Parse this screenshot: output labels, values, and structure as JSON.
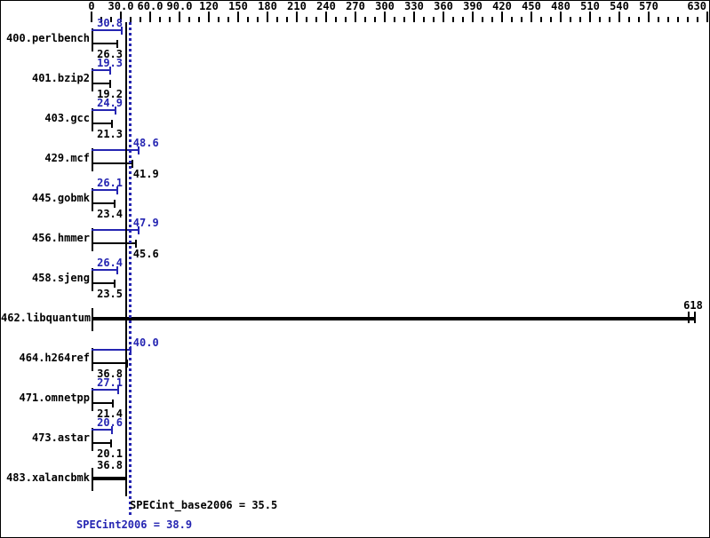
{
  "colors": {
    "peak_blue": "#2525b2",
    "base_black": "#000000",
    "background": "#ffffff"
  },
  "axis": {
    "unit_min": 0,
    "unit_max": 630,
    "minor_step": 10,
    "major_step": 30,
    "major_ticks": [
      {
        "value": 0,
        "label": "0"
      },
      {
        "value": 30,
        "label": "30.0"
      },
      {
        "value": 60,
        "label": "60.0"
      },
      {
        "value": 90,
        "label": "90.0"
      },
      {
        "value": 120,
        "label": "120"
      },
      {
        "value": 150,
        "label": "150"
      },
      {
        "value": 180,
        "label": "180"
      },
      {
        "value": 210,
        "label": "210"
      },
      {
        "value": 240,
        "label": "240"
      },
      {
        "value": 270,
        "label": "270"
      },
      {
        "value": 300,
        "label": "300"
      },
      {
        "value": 330,
        "label": "330"
      },
      {
        "value": 360,
        "label": "360"
      },
      {
        "value": 390,
        "label": "390"
      },
      {
        "value": 420,
        "label": "420"
      },
      {
        "value": 450,
        "label": "450"
      },
      {
        "value": 480,
        "label": "480"
      },
      {
        "value": 510,
        "label": "510"
      },
      {
        "value": 540,
        "label": "540"
      },
      {
        "value": 570,
        "label": "570"
      },
      {
        "value": 600,
        "label": ""
      },
      {
        "value": 630,
        "label": "630"
      }
    ]
  },
  "benchmarks": [
    {
      "name": "400.perlbench",
      "peak": 30.8,
      "peak_label": "30.8",
      "base": 26.3,
      "base_label": "26.3"
    },
    {
      "name": "401.bzip2",
      "peak": 19.3,
      "peak_label": "19.3",
      "base": 19.2,
      "base_label": "19.2"
    },
    {
      "name": "403.gcc",
      "peak": 24.9,
      "peak_label": "24.9",
      "base": 21.3,
      "base_label": "21.3"
    },
    {
      "name": "429.mcf",
      "peak": 48.6,
      "peak_label": "48.6",
      "base": 41.9,
      "base_label": "41.9",
      "peak_label_right": true,
      "base_label_right": true
    },
    {
      "name": "445.gobmk",
      "peak": 26.1,
      "peak_label": "26.1",
      "base": 23.4,
      "base_label": "23.4"
    },
    {
      "name": "456.hmmer",
      "peak": 47.9,
      "peak_label": "47.9",
      "base": 45.6,
      "base_label": "45.6",
      "peak_label_right": true,
      "base_label_right": true
    },
    {
      "name": "458.sjeng",
      "peak": 26.4,
      "peak_label": "26.4",
      "base": 23.5,
      "base_label": "23.5"
    },
    {
      "name": "462.libquantum",
      "single": 618,
      "single_label": "618",
      "cap2": 611,
      "label_at_end": true
    },
    {
      "name": "464.h264ref",
      "peak": 40.0,
      "peak_label": "40.0",
      "base": 36.8,
      "base_label": "36.8",
      "peak_label_right": true
    },
    {
      "name": "471.omnetpp",
      "peak": 27.1,
      "peak_label": "27.1",
      "base": 21.4,
      "base_label": "21.4"
    },
    {
      "name": "473.astar",
      "peak": 20.6,
      "peak_label": "20.6",
      "base": 20.1,
      "base_label": "20.1"
    },
    {
      "name": "483.xalancbmk",
      "single": 36.8,
      "single_label": "36.8"
    }
  ],
  "summary": {
    "base": {
      "value": 35.5,
      "label": "SPECint_base2006 = 35.5",
      "line_style": "solid",
      "color": "#000000"
    },
    "peak": {
      "value": 38.9,
      "label": "SPECint2006 = 38.9",
      "line_style": "dotted",
      "color": "#2525b2"
    }
  },
  "chart_data": {
    "type": "bar",
    "orientation": "horizontal",
    "title": "",
    "xlabel": "",
    "ylabel": "",
    "xlim": [
      0,
      630
    ],
    "grid": false,
    "legend_position": "none",
    "categories": [
      "400.perlbench",
      "401.bzip2",
      "403.gcc",
      "429.mcf",
      "445.gobmk",
      "456.hmmer",
      "458.sjeng",
      "462.libquantum",
      "464.h264ref",
      "471.omnetpp",
      "473.astar",
      "483.xalancbmk"
    ],
    "series": [
      {
        "name": "SPECint2006 (peak)",
        "color": "#2525b2",
        "values": [
          30.8,
          19.3,
          24.9,
          48.6,
          26.1,
          47.9,
          26.4,
          618,
          40.0,
          27.1,
          20.6,
          36.8
        ]
      },
      {
        "name": "SPECint_base2006 (base)",
        "color": "#000000",
        "values": [
          26.3,
          19.2,
          21.3,
          41.9,
          23.4,
          45.6,
          23.5,
          618,
          36.8,
          21.4,
          20.1,
          36.8
        ]
      }
    ],
    "reference_lines": [
      {
        "label": "SPECint_base2006",
        "value": 35.5,
        "color": "#000000",
        "style": "solid"
      },
      {
        "label": "SPECint2006",
        "value": 38.9,
        "color": "#2525b2",
        "style": "dotted"
      }
    ],
    "annotations": [
      "462.libquantum and 483.xalancbmk are drawn as single thick black bars",
      "462.libquantum has a second end cap at ~611",
      "axis tick at 600 is unlabeled"
    ]
  }
}
